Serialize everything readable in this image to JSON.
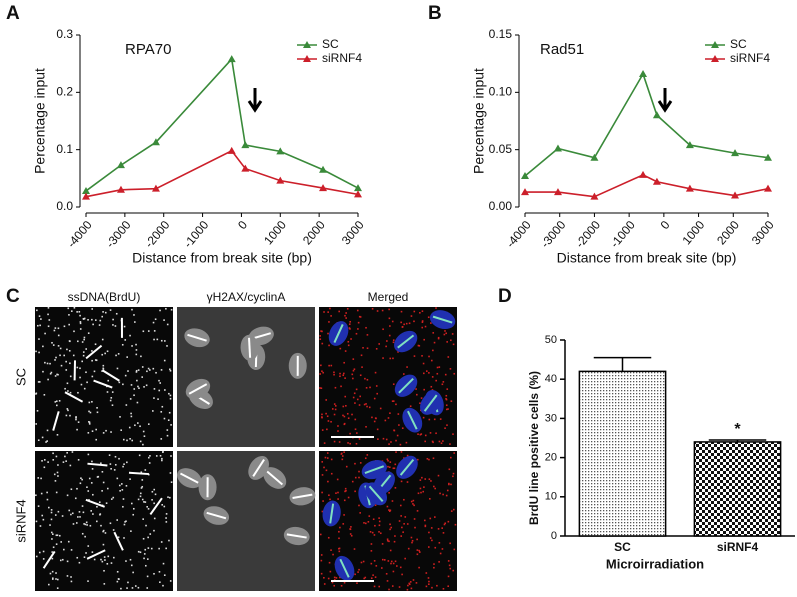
{
  "panel_labels": [
    "A",
    "B",
    "C",
    "D"
  ],
  "chart_data": [
    {
      "type": "line",
      "title": "RPA70",
      "xlabel": "Distance from break site (bp)",
      "ylabel": "Percentage input",
      "x": [
        -4000,
        -3100,
        -2200,
        -250,
        100,
        1000,
        2100,
        3000
      ],
      "series": [
        {
          "name": "SC",
          "color": "#3a8a3a",
          "values": [
            0.028,
            0.073,
            0.113,
            0.258,
            0.108,
            0.097,
            0.065,
            0.033
          ]
        },
        {
          "name": "siRNF4",
          "color": "#cc1f2a",
          "values": [
            0.018,
            0.03,
            0.032,
            0.098,
            0.067,
            0.046,
            0.033,
            0.022
          ]
        }
      ],
      "xlim": [
        -4000,
        3000
      ],
      "xticks": [
        -4000,
        -3000,
        -2000,
        -1000,
        0,
        1000,
        2000,
        3000
      ],
      "ylim": [
        0,
        0.3
      ],
      "yticks": [
        {
          "value": 0,
          "label": "0.0"
        },
        0.1,
        0.2,
        0.3
      ]
    },
    {
      "type": "line",
      "title": "Rad51",
      "xlabel": "Distance from break site (bp)",
      "ylabel": "Percentage input",
      "x": [
        -4000,
        -3050,
        -2000,
        -600,
        -200,
        750,
        2050,
        3000
      ],
      "series": [
        {
          "name": "SC",
          "color": "#3a8a3a",
          "values": [
            0.027,
            0.051,
            0.043,
            0.116,
            0.08,
            0.054,
            0.047,
            0.043
          ]
        },
        {
          "name": "siRNF4",
          "color": "#cc1f2a",
          "values": [
            0.013,
            0.013,
            0.009,
            0.028,
            0.022,
            0.016,
            0.01,
            0.016
          ]
        }
      ],
      "xlim": [
        -4000,
        3000
      ],
      "xticks": [
        -4000,
        -3000,
        -2000,
        -1000,
        0,
        1000,
        2000,
        3000
      ],
      "ylim": [
        0,
        0.15
      ],
      "yticks": [
        {
          "value": 0,
          "label": "0.00"
        },
        {
          "value": 0.05,
          "label": "0.05"
        },
        {
          "value": 0.1,
          "label": "0.10"
        },
        {
          "value": 0.15,
          "label": "0.15"
        }
      ]
    },
    {
      "type": "bar",
      "xlabel": "Microirradiation",
      "ylabel": "BrdU line positive cells (%)",
      "categories": [
        "SC",
        "siRNF4"
      ],
      "values": [
        42,
        24
      ],
      "errors": [
        3.5,
        0.5
      ],
      "annotation": "*",
      "ylim": [
        0,
        50
      ],
      "yticks": [
        0,
        10,
        20,
        30,
        40,
        50
      ]
    }
  ],
  "panel_c": {
    "columns": [
      "ssDNA(BrdU)",
      "γH2AX/cyclinA",
      "Merged"
    ],
    "rows": [
      "SC",
      "siRNF4"
    ]
  }
}
